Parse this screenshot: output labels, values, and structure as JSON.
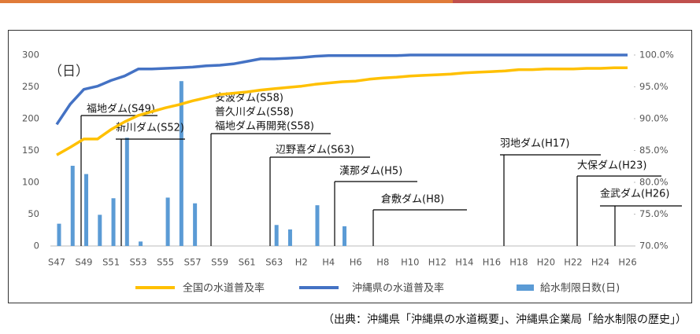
{
  "chart_data": {
    "type": "combo",
    "y_unit_label": "（日）",
    "source": "（出典：沖縄県「沖縄県の水道概要」、沖縄県企業局「給水制限の歴史」）",
    "categories": [
      "S47",
      null,
      "S49",
      null,
      "S51",
      null,
      "S53",
      null,
      "S55",
      null,
      "S57",
      null,
      "S59",
      null,
      "S61",
      null,
      "S63",
      null,
      "H2",
      null,
      "H4",
      null,
      "H6",
      null,
      "H8",
      null,
      "H10",
      null,
      "H12",
      null,
      "H14",
      null,
      "H16",
      null,
      "H18",
      null,
      "H20",
      null,
      "H22",
      null,
      "H24",
      null,
      "H26"
    ],
    "ylim": [
      0,
      300
    ],
    "yticks": [
      0,
      50,
      100,
      150,
      200,
      250,
      300
    ],
    "y2lim": [
      70,
      100
    ],
    "y2ticks": [
      {
        "value": 70,
        "label": "70.0%"
      },
      {
        "value": 75,
        "label": "75.0%"
      },
      {
        "value": 80,
        "label": "80.0%"
      },
      {
        "value": 85,
        "label": "85.0%"
      },
      {
        "value": 90,
        "label": "90.0%"
      },
      {
        "value": 95,
        "label": "95.0%"
      },
      {
        "value": 100,
        "label": "100.0%"
      }
    ],
    "series": [
      {
        "name": "全国の水道普及率",
        "kind": "line",
        "axis": "y2",
        "color": "#ffc000",
        "values": [
          84.3,
          85.5,
          86.8,
          86.8,
          88.3,
          89.5,
          90.5,
          91.1,
          91.7,
          92.2,
          92.8,
          93.3,
          93.8,
          94.0,
          94.2,
          94.5,
          94.7,
          94.9,
          95.1,
          95.4,
          95.6,
          95.8,
          95.9,
          96.2,
          96.4,
          96.5,
          96.7,
          96.8,
          96.9,
          97.0,
          97.2,
          97.3,
          97.4,
          97.5,
          97.7,
          97.7,
          97.8,
          97.8,
          97.8,
          97.9,
          97.9,
          98.0,
          98.0
        ]
      },
      {
        "name": "沖縄県の水道普及率",
        "kind": "line",
        "axis": "y2",
        "color": "#4472c4",
        "values": [
          89.1,
          92.3,
          94.6,
          95.1,
          96.0,
          96.7,
          97.8,
          97.8,
          97.9,
          98.0,
          98.1,
          98.3,
          98.4,
          98.6,
          99.0,
          99.4,
          99.4,
          99.5,
          99.6,
          99.8,
          99.9,
          99.9,
          99.9,
          99.9,
          99.9,
          99.9,
          100.0,
          100.0,
          100.0,
          100.0,
          100.0,
          100.0,
          100.0,
          100.0,
          100.0,
          100.0,
          100.0,
          100.0,
          100.0,
          100.0,
          100.0,
          100.0,
          100.0
        ]
      },
      {
        "name": "給水制限日数(日)",
        "kind": "bar",
        "color": "#5b9bd5",
        "values": [
          35,
          126,
          113,
          49,
          75,
          170,
          7,
          0,
          76,
          259,
          67,
          0,
          0,
          0,
          0,
          0,
          33,
          26,
          0,
          64,
          0,
          31,
          0,
          0,
          0,
          0,
          0,
          0,
          0,
          0,
          0,
          0,
          0,
          0,
          0,
          0,
          0,
          0,
          0,
          0,
          0,
          0,
          0
        ]
      }
    ],
    "annotations": [
      [
        "福地ダム(S49)"
      ],
      [
        "新川ダム(S52)"
      ],
      [
        "安波ダム(S58)",
        "普久川ダム(S58)",
        "福地ダム再開発(S58)"
      ],
      [
        "辺野喜ダム(S63)"
      ],
      [
        "漢那ダム(H5)"
      ],
      [
        "倉敷ダム(H8)"
      ],
      [
        "羽地ダム(H17)"
      ],
      [
        "大保ダム(H23)"
      ],
      [
        "金武ダム(H26)"
      ]
    ]
  }
}
